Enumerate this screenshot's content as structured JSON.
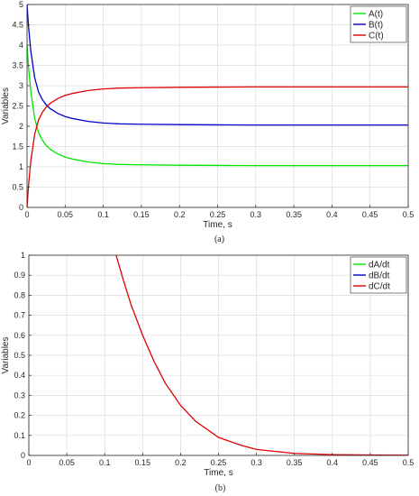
{
  "chart_data": [
    {
      "type": "line",
      "caption": "(a)",
      "xlabel": "Time, s",
      "ylabel": "Variables",
      "xlim": [
        0,
        0.5
      ],
      "ylim": [
        0,
        5
      ],
      "xticks": [
        0,
        0.05,
        0.1,
        0.15,
        0.2,
        0.25,
        0.3,
        0.35,
        0.4,
        0.45,
        0.5
      ],
      "xtick_labels": [
        "0",
        "0.05",
        "0.1",
        "0.15",
        "0.2",
        "0.25",
        "0.3",
        "0.35",
        "0.4",
        "0.45",
        "0.5"
      ],
      "yticks": [
        0,
        0.5,
        1,
        1.5,
        2,
        2.5,
        3,
        3.5,
        4,
        4.5,
        5
      ],
      "ytick_labels": [
        "0",
        "0.5",
        "1",
        "1.5",
        "2",
        "2.5",
        "3",
        "3.5",
        "4",
        "4.5",
        "5"
      ],
      "grid": true,
      "legend_position": "top-right",
      "series": [
        {
          "name": "A(t)",
          "color": "#00e600",
          "x": [
            0,
            0.002,
            0.005,
            0.01,
            0.015,
            0.02,
            0.025,
            0.03,
            0.04,
            0.05,
            0.06,
            0.08,
            0.1,
            0.12,
            0.15,
            0.2,
            0.25,
            0.3,
            0.35,
            0.4,
            0.45,
            0.5
          ],
          "y": [
            4.0,
            3.45,
            2.85,
            2.2,
            1.85,
            1.66,
            1.53,
            1.44,
            1.32,
            1.24,
            1.19,
            1.12,
            1.08,
            1.06,
            1.05,
            1.04,
            1.035,
            1.03,
            1.03,
            1.03,
            1.03,
            1.03
          ]
        },
        {
          "name": "B(t)",
          "color": "#0000cc",
          "x": [
            0,
            0.002,
            0.005,
            0.01,
            0.015,
            0.02,
            0.025,
            0.03,
            0.04,
            0.05,
            0.06,
            0.08,
            0.1,
            0.12,
            0.15,
            0.2,
            0.25,
            0.3,
            0.35,
            0.4,
            0.45,
            0.5
          ],
          "y": [
            5.0,
            4.45,
            3.85,
            3.2,
            2.85,
            2.66,
            2.53,
            2.44,
            2.32,
            2.24,
            2.19,
            2.12,
            2.08,
            2.06,
            2.05,
            2.04,
            2.035,
            2.03,
            2.03,
            2.03,
            2.03,
            2.03
          ]
        },
        {
          "name": "C(t)",
          "color": "#e00000",
          "x": [
            0,
            0.002,
            0.005,
            0.01,
            0.015,
            0.02,
            0.025,
            0.03,
            0.04,
            0.05,
            0.06,
            0.08,
            0.1,
            0.12,
            0.15,
            0.2,
            0.25,
            0.3,
            0.35,
            0.4,
            0.45,
            0.5
          ],
          "y": [
            0.0,
            0.55,
            1.15,
            1.8,
            2.15,
            2.34,
            2.47,
            2.56,
            2.68,
            2.76,
            2.81,
            2.88,
            2.92,
            2.94,
            2.95,
            2.96,
            2.965,
            2.97,
            2.97,
            2.97,
            2.97,
            2.97
          ]
        }
      ]
    },
    {
      "type": "line",
      "caption": "(b)",
      "xlabel": "Time, s",
      "ylabel": "Variables",
      "xlim": [
        0,
        0.5
      ],
      "ylim": [
        0,
        1
      ],
      "xticks": [
        0,
        0.05,
        0.1,
        0.15,
        0.2,
        0.25,
        0.3,
        0.35,
        0.4,
        0.45,
        0.5
      ],
      "xtick_labels": [
        "0",
        "0.05",
        "0.1",
        "0.15",
        "0.2",
        "0.25",
        "0.3",
        "0.35",
        "0.4",
        "0.45",
        "0.5"
      ],
      "yticks": [
        0,
        0.1,
        0.2,
        0.3,
        0.4,
        0.5,
        0.6,
        0.7,
        0.8,
        0.9,
        1
      ],
      "ytick_labels": [
        "0",
        "0.1",
        "0.2",
        "0.3",
        "0.4",
        "0.5",
        "0.6",
        "0.7",
        "0.8",
        "0.9",
        "1"
      ],
      "grid": true,
      "legend_position": "top-right",
      "series": [
        {
          "name": "dA/dt",
          "color": "#00e600",
          "x": [],
          "y": []
        },
        {
          "name": "dB/dt",
          "color": "#0000cc",
          "x": [],
          "y": []
        },
        {
          "name": "dC/dt",
          "color": "#e00000",
          "x": [
            0.115,
            0.125,
            0.135,
            0.15,
            0.165,
            0.18,
            0.2,
            0.22,
            0.25,
            0.28,
            0.3,
            0.35,
            0.4,
            0.45,
            0.5
          ],
          "y": [
            1.0,
            0.87,
            0.75,
            0.6,
            0.47,
            0.36,
            0.25,
            0.17,
            0.09,
            0.05,
            0.03,
            0.01,
            0.004,
            0.002,
            0.001
          ]
        }
      ]
    }
  ]
}
